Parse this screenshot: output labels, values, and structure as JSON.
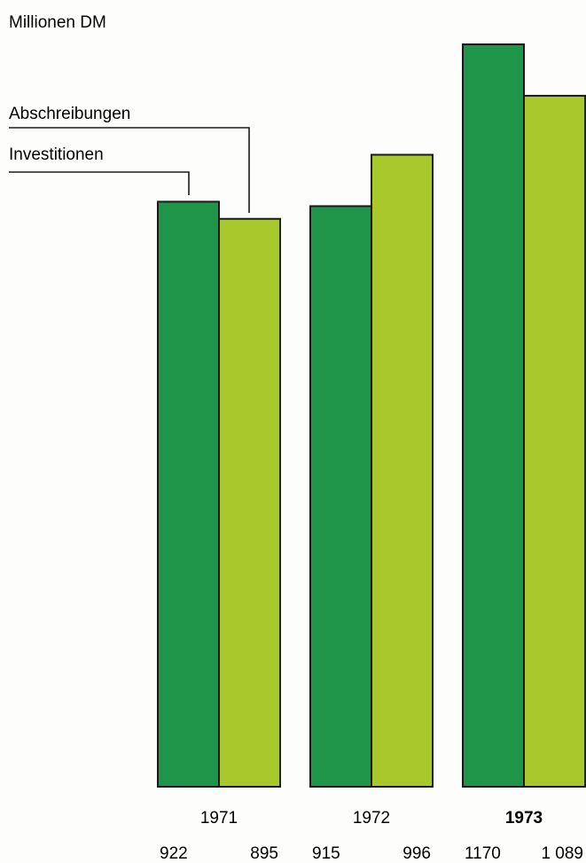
{
  "chart_data": {
    "type": "bar",
    "unit_label": "Millionen DM",
    "categories": [
      "1971",
      "1972",
      "1973"
    ],
    "series": [
      {
        "name": "Investitionen",
        "values": [
          922,
          915,
          1170
        ],
        "value_labels": [
          "922",
          "915",
          "1170"
        ],
        "color": "#1e9548"
      },
      {
        "name": "Abschreibungen",
        "values": [
          895,
          996,
          1089
        ],
        "value_labels": [
          "895",
          "996",
          "1 089"
        ],
        "color": "#a9c82b"
      }
    ],
    "ylim": [
      0,
      1200
    ],
    "grid": false,
    "legend_placement": "top-left, with leader lines to the 1971 bars"
  }
}
